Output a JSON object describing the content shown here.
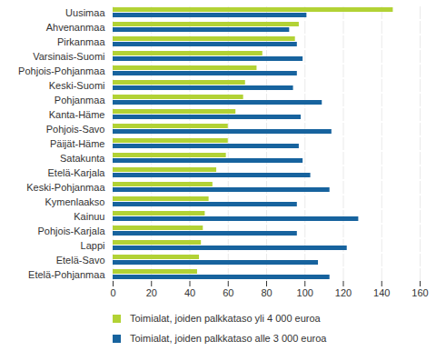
{
  "chart_data": {
    "type": "bar",
    "orientation": "horizontal",
    "categories": [
      "Uusimaa",
      "Ahvenanmaa",
      "Pirkanmaa",
      "Varsinais-Suomi",
      "Pohjois-Pohjanmaa",
      "Keski-Suomi",
      "Pohjanmaa",
      "Kanta-Häme",
      "Pohjois-Savo",
      "Päijät-Häme",
      "Satakunta",
      "Etelä-Karjala",
      "Keski-Pohjanmaa",
      "Kymenlaakso",
      "Kainuu",
      "Pohjois-Karjala",
      "Lappi",
      "Etelä-Savo",
      "Etelä-Pohjanmaa"
    ],
    "series": [
      {
        "name": "Toimialat, joiden palkkataso yli 4 000 euroa",
        "color": "#b2d235",
        "values": [
          146,
          97,
          95,
          78,
          75,
          69,
          68,
          64,
          60,
          60,
          59,
          54,
          52,
          50,
          48,
          47,
          46,
          45,
          44
        ]
      },
      {
        "name": "Toimialat, joiden palkkataso alle 3 000 euroa",
        "color": "#17639e",
        "values": [
          101,
          92,
          96,
          99,
          96,
          94,
          109,
          98,
          114,
          97,
          99,
          103,
          113,
          96,
          128,
          96,
          122,
          107,
          113
        ]
      }
    ],
    "xlim": [
      0,
      160
    ],
    "xticks": [
      0,
      20,
      40,
      60,
      80,
      100,
      120,
      140,
      160
    ],
    "grid": true,
    "legend": "bottom"
  }
}
